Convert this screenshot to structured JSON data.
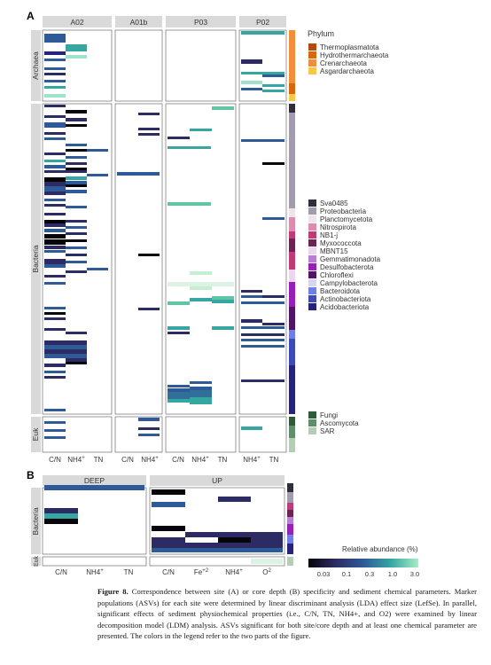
{
  "panel_a": {
    "label": "A",
    "columns": [
      "A02",
      "A01b",
      "P03",
      "P02"
    ],
    "groups": [
      "Archaea",
      "Bacteria",
      "Euk"
    ],
    "xticks": [
      [
        "C/N",
        "NH4",
        "TN"
      ],
      [
        "C/N",
        "NH4"
      ],
      [
        "C/N",
        "NH4",
        "TN"
      ],
      [
        "NH4",
        "TN"
      ]
    ]
  },
  "panel_b": {
    "label": "B",
    "columns": [
      "DEEP",
      "UP"
    ],
    "groups": [
      "Bacteria",
      "Euk"
    ],
    "xticks": [
      [
        "C/N",
        "NH4",
        "TN"
      ],
      [
        "C/N",
        "Fe",
        "NH4",
        "O"
      ]
    ]
  },
  "super": {
    "nh4": "+",
    "fe": "+2",
    "o2": "2"
  },
  "legend": {
    "phylum_title": "Phylum",
    "archaea": [
      {
        "name": "Thermoplasmatota",
        "color": "#b44a0b"
      },
      {
        "name": "Hydrothermarchaeota",
        "color": "#d8660e"
      },
      {
        "name": "Crenarchaeota",
        "color": "#f28d3a"
      },
      {
        "name": "Asgardarchaeota",
        "color": "#f7c64b"
      }
    ],
    "bacteria": [
      {
        "name": "Sva0485",
        "color": "#2f2f3a"
      },
      {
        "name": "Proteobacteria",
        "color": "#a39caf"
      },
      {
        "name": "Planctomycetota",
        "color": "#efe4ec"
      },
      {
        "name": "Nitrospirota",
        "color": "#de8cae"
      },
      {
        "name": "NB1-j",
        "color": "#c03a78"
      },
      {
        "name": "Myxococcota",
        "color": "#6d2452"
      },
      {
        "name": "MBNT15",
        "color": "#ecd6f0"
      },
      {
        "name": "Gemmatimonadota",
        "color": "#b77fd3"
      },
      {
        "name": "Desulfobacterota",
        "color": "#9a1fb6"
      },
      {
        "name": "Chloroflexi",
        "color": "#521466"
      },
      {
        "name": "Campylobacterota",
        "color": "#d2d6f3"
      },
      {
        "name": "Bacteroidota",
        "color": "#6f7fe3"
      },
      {
        "name": "Actinobacteriota",
        "color": "#3e4ab8"
      },
      {
        "name": "Acidobacteriota",
        "color": "#27227a"
      }
    ],
    "euk": [
      {
        "name": "Fungi",
        "color": "#2f5a3a"
      },
      {
        "name": "Ascomycota",
        "color": "#5f8f68"
      },
      {
        "name": "SAR",
        "color": "#b5ccb6"
      }
    ],
    "abundance_title": "Relative abundance (%)",
    "abundance_ticks": [
      "0.03",
      "0.1",
      "0.3",
      "1.0",
      "3.0"
    ]
  },
  "caption": {
    "label": "Figure 8.",
    "text": "Correspondence between site (A) or core depth (B) specificity and sediment chemical parameters. Marker populations (ASVs) for each site were determined by linear discriminant analysis (LDA) effect size (LefSe). In parallel, significant effects of sediment physiochemical properties (i.e., C/N, TN, NH4+, and O2) were examined by linear decomposition model (LDM) analysis. ASVs significant for both site/core depth and at least one chemical parameter are presented. The colors in the legend refer to the two parts of the figure."
  }
}
